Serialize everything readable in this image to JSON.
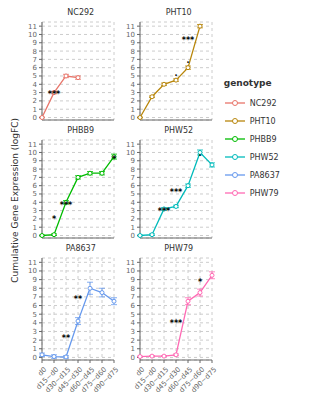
{
  "chart_data": [
    {
      "type": "line",
      "title": "NC292",
      "categories": [
        "d0",
        "d15~d0",
        "d30~d15",
        "d45~d30",
        "d60~d45",
        "d75~d60",
        "d90~d75"
      ],
      "series": [
        {
          "name": "NC292",
          "color": "#E8756A",
          "marker": "circle",
          "values": [
            0.0,
            3.0,
            5.0,
            4.8,
            null,
            null,
            null
          ],
          "errors": [
            0.05,
            0.15,
            0.2,
            0.2,
            null,
            null,
            null
          ]
        }
      ],
      "annotations": [
        {
          "x": "d15~d0",
          "y": 2.3,
          "text": "***"
        }
      ],
      "ylim": [
        -0.3,
        11.5
      ],
      "yticks": [
        0,
        1,
        2,
        3,
        4,
        5,
        6,
        7,
        8,
        9,
        10,
        11
      ],
      "grid": true,
      "tick_labels": "y"
    },
    {
      "type": "line",
      "title": "PHT10",
      "categories": [
        "d0",
        "d15~d0",
        "d30~d15",
        "d45~d30",
        "d60~d45",
        "d75~d60",
        "d90~d75"
      ],
      "series": [
        {
          "name": "PHT10",
          "color": "#B8860B",
          "marker": "circle",
          "values": [
            0.0,
            2.5,
            4.0,
            4.5,
            6.0,
            11.0,
            null
          ],
          "errors": [
            0.05,
            0.1,
            0.15,
            0.15,
            0.2,
            0.2,
            null
          ]
        }
      ],
      "annotations": [
        {
          "x": "d45~d30",
          "y": 4.9,
          "text": "."
        },
        {
          "x": "d60~d45",
          "y": 6.4,
          "text": "."
        },
        {
          "x": "d60~d45",
          "y": 8.8,
          "text": "***"
        }
      ],
      "ylim": [
        -0.3,
        11.5
      ],
      "yticks": [
        0,
        1,
        2,
        3,
        4,
        5,
        6,
        7,
        8,
        9,
        10,
        11
      ],
      "grid": true,
      "tick_labels": "y"
    },
    {
      "type": "line",
      "title": "PHBB9",
      "categories": [
        "d0",
        "d15~d0",
        "d30~d15",
        "d45~d30",
        "d60~d45",
        "d75~d60",
        "d90~d75"
      ],
      "series": [
        {
          "name": "PHBB9",
          "color": "#00BB00",
          "marker": "circle",
          "values": [
            0.0,
            0.1,
            4.0,
            7.0,
            7.5,
            7.5,
            9.5
          ],
          "errors": [
            0.05,
            0.1,
            0.2,
            0.2,
            0.2,
            0.2,
            0.3
          ]
        }
      ],
      "annotations": [
        {
          "x": "d15~d0",
          "y": 1.5,
          "text": "*"
        },
        {
          "x": "d30~d15",
          "y": 3.2,
          "text": "***"
        },
        {
          "x": "d90~d75",
          "y": 8.7,
          "text": "*"
        }
      ],
      "ylim": [
        -0.3,
        11.5
      ],
      "yticks": [
        0,
        1,
        2,
        3,
        4,
        5,
        6,
        7,
        8,
        9,
        10,
        11
      ],
      "grid": true,
      "tick_labels": "y"
    },
    {
      "type": "line",
      "title": "PHW52",
      "categories": [
        "d0",
        "d15~d0",
        "d30~d15",
        "d45~d30",
        "d60~d45",
        "d75~d60",
        "d90~d75"
      ],
      "series": [
        {
          "name": "PHW52",
          "color": "#00BBBB",
          "marker": "circle",
          "values": [
            0.0,
            0.1,
            3.2,
            3.5,
            6.0,
            10.0,
            8.5
          ],
          "errors": [
            0.05,
            0.1,
            0.15,
            0.15,
            0.2,
            0.3,
            0.25
          ]
        }
      ],
      "annotations": [
        {
          "x": "d30~d15",
          "y": 2.5,
          "text": "***"
        },
        {
          "x": "d45~d30",
          "y": 4.8,
          "text": "***"
        },
        {
          "x": "d75~d60",
          "y": 9.5,
          "text": "."
        }
      ],
      "ylim": [
        -0.3,
        11.5
      ],
      "yticks": [
        0,
        1,
        2,
        3,
        4,
        5,
        6,
        7,
        8,
        9,
        10,
        11
      ],
      "grid": true,
      "tick_labels": "y"
    },
    {
      "type": "line",
      "title": "PA8637",
      "categories": [
        "d0",
        "d15~d0",
        "d30~d15",
        "d45~d30",
        "d60~d45",
        "d75~d60",
        "d90~d75"
      ],
      "series": [
        {
          "name": "PA8637",
          "color": "#6699EE",
          "marker": "circle",
          "values": [
            0.3,
            0.1,
            0.05,
            4.2,
            8.0,
            7.5,
            6.5
          ],
          "errors": [
            0.2,
            0.2,
            0.15,
            0.4,
            0.7,
            0.5,
            0.4
          ]
        }
      ],
      "annotations": [
        {
          "x": "d30~d15",
          "y": 1.8,
          "text": "**"
        },
        {
          "x": "d45~d30",
          "y": 6.3,
          "text": "**"
        }
      ],
      "ylim": [
        -0.3,
        11.5
      ],
      "yticks": [
        0,
        1,
        2,
        3,
        4,
        5,
        6,
        7,
        8,
        9,
        10,
        11
      ],
      "grid": true
    },
    {
      "type": "line",
      "title": "PHW79",
      "categories": [
        "d0",
        "d15~d0",
        "d30~d15",
        "d45~d30",
        "d60~d45",
        "d75~d60",
        "d90~d75"
      ],
      "series": [
        {
          "name": "PHW79",
          "color": "#FF69B4",
          "marker": "circle",
          "values": [
            0.1,
            0.15,
            0.15,
            0.3,
            6.5,
            7.5,
            9.5
          ],
          "errors": [
            0.05,
            0.05,
            0.05,
            0.1,
            0.4,
            0.4,
            0.4
          ]
        }
      ],
      "annotations": [
        {
          "x": "d45~d30",
          "y": 3.5,
          "text": "***"
        },
        {
          "x": "d75~d60",
          "y": 8.3,
          "text": "*"
        }
      ],
      "ylim": [
        -0.3,
        11.5
      ],
      "yticks": [
        0,
        1,
        2,
        3,
        4,
        5,
        6,
        7,
        8,
        9,
        10,
        11
      ],
      "grid": true
    }
  ],
  "ylabel": "Cumulative Gene Expression (logFC)",
  "legend_title": "genotype"
}
